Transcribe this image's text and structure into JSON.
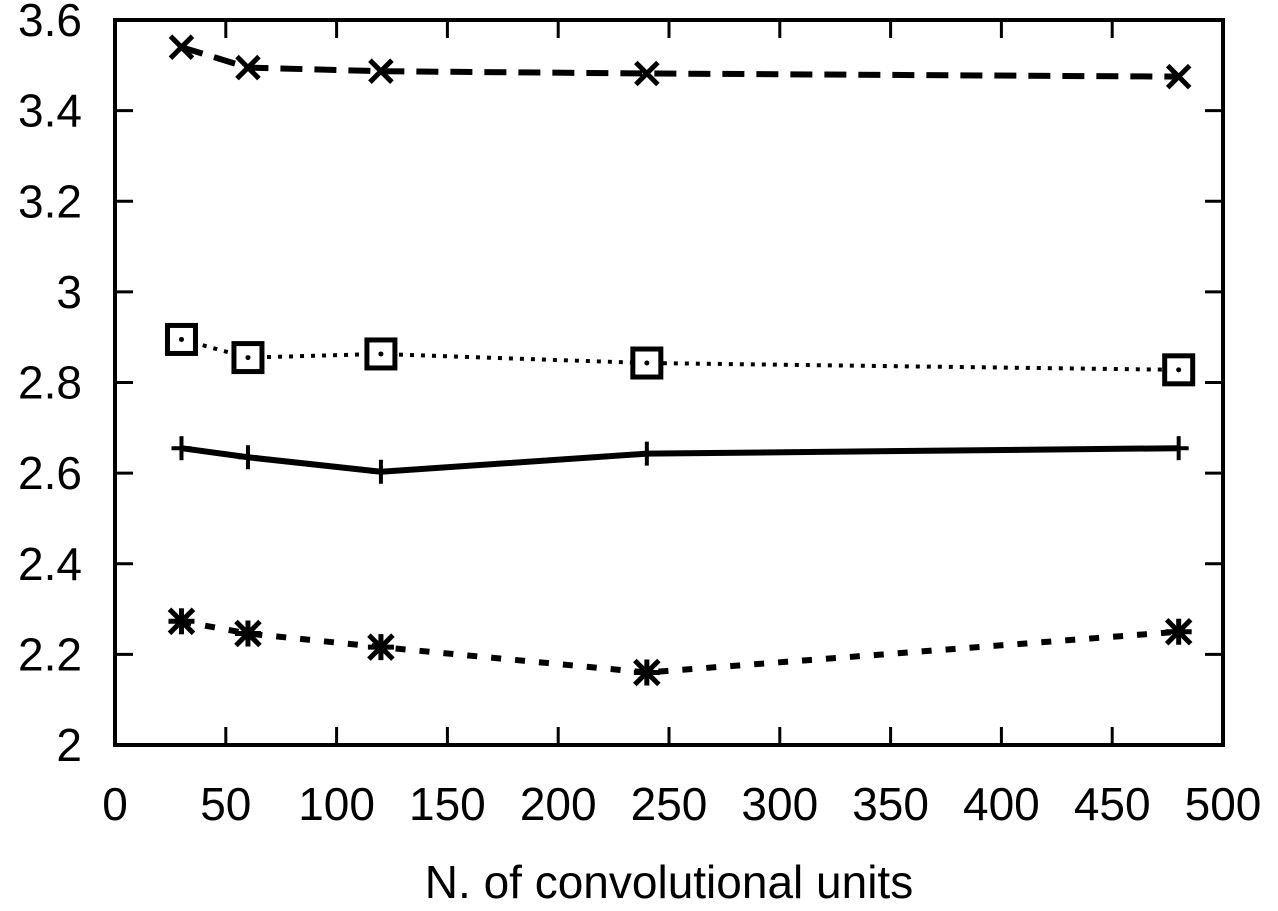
{
  "chart_data": {
    "type": "line",
    "title": "",
    "xlabel": "N. of convolutional units",
    "ylabel": "",
    "xlim": [
      0,
      500
    ],
    "ylim": [
      2,
      3.6
    ],
    "xticks": [
      0,
      50,
      100,
      150,
      200,
      250,
      300,
      350,
      400,
      450,
      500
    ],
    "xtick_labels": [
      "0",
      "50",
      "100",
      "150",
      "200",
      "250",
      "300",
      "350",
      "400",
      "450",
      "500"
    ],
    "yticks": [
      2,
      2.2,
      2.4,
      2.6,
      2.8,
      3,
      3.2,
      3.4,
      3.6
    ],
    "ytick_labels": [
      "2",
      "2.2",
      "2.4",
      "2.6",
      "2.8",
      "3",
      "3.2",
      "3.4",
      "3.6"
    ],
    "grid": false,
    "legend": "none",
    "x": [
      30,
      60,
      120,
      240,
      480
    ],
    "series": [
      {
        "marker": "cross",
        "line": "dashed",
        "color": "#000000",
        "values": [
          3.54,
          3.495,
          3.487,
          3.482,
          3.475
        ]
      },
      {
        "marker": "square",
        "line": "dotted",
        "color": "#000000",
        "values": [
          2.895,
          2.855,
          2.863,
          2.843,
          2.828
        ]
      },
      {
        "marker": "plus",
        "line": "solid",
        "color": "#000000",
        "values": [
          2.655,
          2.635,
          2.603,
          2.643,
          2.655
        ]
      },
      {
        "marker": "star",
        "line": "dotted-coarse",
        "color": "#000000",
        "values": [
          2.273,
          2.246,
          2.216,
          2.16,
          2.25
        ]
      }
    ]
  }
}
